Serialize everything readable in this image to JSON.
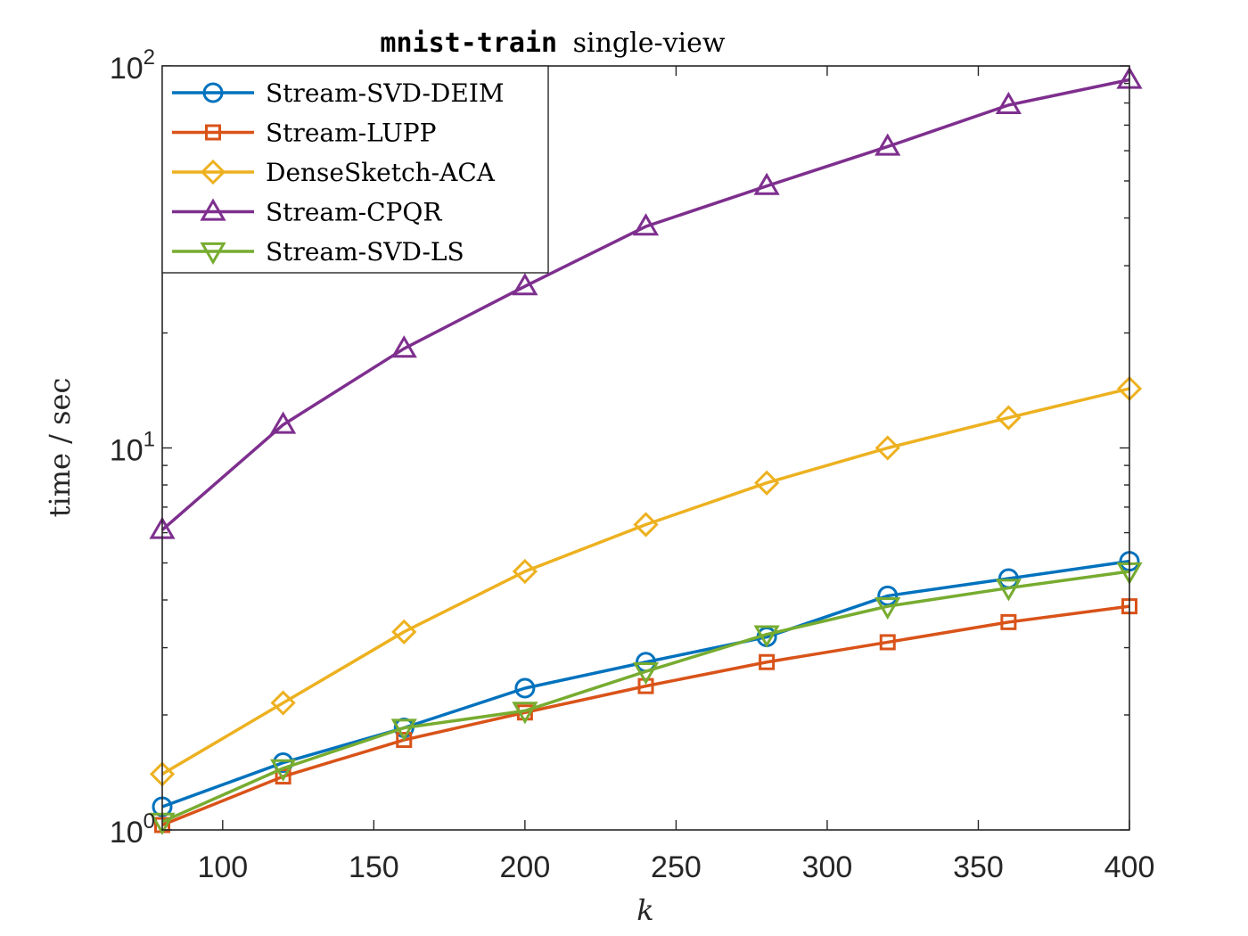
{
  "chart_data": {
    "type": "line",
    "title_code": "mnist-train",
    "title_text": "single-view",
    "xlabel": "k",
    "ylabel": "time / sec",
    "yscale": "log",
    "xlim": [
      80,
      400
    ],
    "ylim": [
      1,
      100
    ],
    "x_ticks": [
      100,
      150,
      200,
      250,
      300,
      350,
      400
    ],
    "y_ticks": [
      {
        "value": 1,
        "base": "10",
        "exp": "0"
      },
      {
        "value": 10,
        "base": "10",
        "exp": "1"
      },
      {
        "value": 100,
        "base": "10",
        "exp": "2"
      }
    ],
    "legend_position": "top-left",
    "grid": false,
    "x": [
      80,
      120,
      160,
      200,
      240,
      280,
      320,
      360,
      400
    ],
    "series": [
      {
        "name": "Stream-SVD-DEIM",
        "color": "#0072BD",
        "marker": "circle",
        "values": [
          1.15,
          1.5,
          1.85,
          2.35,
          2.75,
          3.2,
          4.1,
          4.55,
          5.05
        ]
      },
      {
        "name": "Stream-LUPP",
        "color": "#D95319",
        "marker": "square",
        "values": [
          1.03,
          1.38,
          1.72,
          2.03,
          2.38,
          2.75,
          3.1,
          3.5,
          3.85
        ]
      },
      {
        "name": "DenseSketch-ACA",
        "color": "#EDB120",
        "marker": "diamond",
        "values": [
          1.4,
          2.15,
          3.3,
          4.75,
          6.3,
          8.1,
          10.0,
          12.0,
          14.3
        ]
      },
      {
        "name": "Stream-CPQR",
        "color": "#7E2F8E",
        "marker": "triangle-up",
        "values": [
          6.1,
          11.5,
          18.2,
          26.5,
          38.0,
          48.5,
          61.5,
          79.0,
          92.0
        ]
      },
      {
        "name": "Stream-SVD-LS",
        "color": "#77AC30",
        "marker": "triangle-down",
        "values": [
          1.05,
          1.45,
          1.85,
          2.05,
          2.6,
          3.25,
          3.85,
          4.3,
          4.75
        ]
      }
    ]
  }
}
